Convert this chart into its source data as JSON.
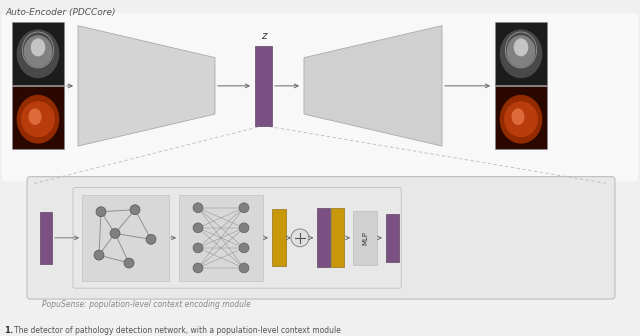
{
  "bg_color": "#f0f0f0",
  "title_text": "Auto-Encoder (PDCCore)",
  "purple_color": "#7b5082",
  "gold_color": "#c8980a",
  "enc_color": "#d0d0d0",
  "node_color": "#888888",
  "arrow_color": "#666666",
  "popusense_label": "PopuSense: population-level context encoding module",
  "mlp_label": "MLP",
  "z_label": "z",
  "caption": "The detector of pathology detection network, with a population-level context module"
}
